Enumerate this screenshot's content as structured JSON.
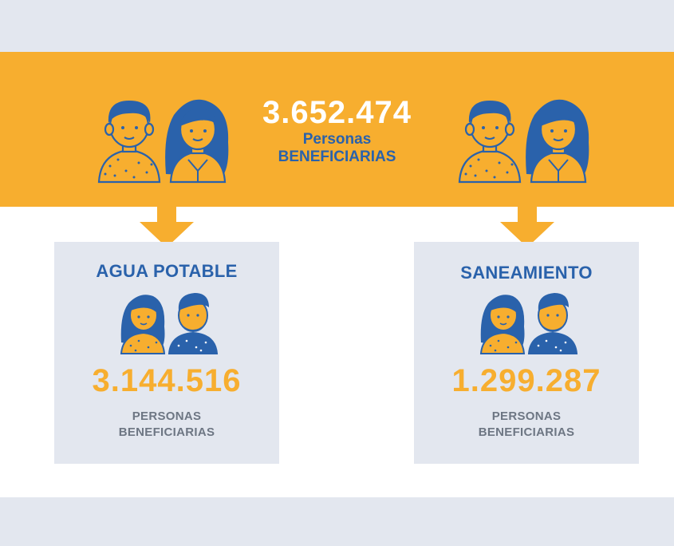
{
  "banner": {
    "total": "3.652.474",
    "line1": "Personas",
    "line2": "BENEFICIARIAS"
  },
  "cards": [
    {
      "title": "AGUA POTABLE",
      "number": "3.144.516",
      "line1": "PERSONAS",
      "line2": "BENEFICIARIAS"
    },
    {
      "title": "SANEAMIENTO",
      "number": "1.299.287",
      "line1": "PERSONAS",
      "line2": "BENEFICIARIAS"
    }
  ],
  "colors": {
    "orange": "#f7ae2f",
    "blue": "#2a62ab",
    "light_gray": "#e3e7ef",
    "gray_text": "#6d7683"
  }
}
